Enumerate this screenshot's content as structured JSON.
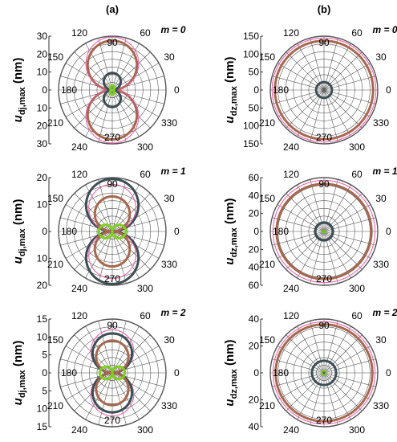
{
  "panel_labels": {
    "a": "(a)",
    "b": "(b)"
  },
  "colors": {
    "dark": "#3d4e54",
    "brown": "#a6684e",
    "green": "#7fcf1f",
    "pink": "#e85aa6",
    "red": "#d0202a",
    "cyan": "#27c6cf",
    "grid": "#555555"
  },
  "chart_data": [
    {
      "type": "polar",
      "id": "a0",
      "column": "a",
      "m_label": "m = 0",
      "ylabel_main": "u",
      "ylabel_sub": "dj,max",
      "ylabel_unit": " (nm)",
      "rmax": 30,
      "rticks": [
        "30",
        "20",
        "10",
        "0",
        "10",
        "20",
        "30"
      ],
      "angle_labels": [
        "90",
        "60",
        "30",
        "0",
        "330",
        "300",
        "270",
        "240",
        "210",
        "180",
        "150",
        "120"
      ],
      "curves": [
        {
          "color": "brown",
          "shape": "dipole",
          "amp": 27.5,
          "width": 3
        },
        {
          "color": "pink",
          "shape": "dipole",
          "amp": 29.5,
          "width": 1
        },
        {
          "color": "dark",
          "shape": "dipole",
          "amp": 9.5,
          "width": 3
        },
        {
          "color": "green",
          "shape": "dipole",
          "amp": 2.5,
          "width": 3
        }
      ]
    },
    {
      "type": "polar",
      "id": "b0",
      "column": "b",
      "m_label": "m = 0",
      "ylabel_main": "u",
      "ylabel_sub": "dz,max",
      "ylabel_unit": " (nm)",
      "rmax": 150,
      "rticks": [
        "150",
        "100",
        "50",
        "0",
        "50",
        "100",
        "150"
      ],
      "angle_labels": [
        "90",
        "60",
        "30",
        "0",
        "330",
        "300",
        "270",
        "240",
        "210",
        "180",
        "150",
        "120"
      ],
      "curves": [
        {
          "color": "pink",
          "shape": "circle",
          "amp": 145,
          "width": 1
        },
        {
          "color": "brown",
          "shape": "circle",
          "amp": 137,
          "width": 3
        },
        {
          "color": "dark",
          "shape": "circle",
          "amp": 22,
          "width": 3
        }
      ]
    },
    {
      "type": "polar",
      "id": "a1",
      "column": "a",
      "m_label": "m = 1",
      "ylabel_main": "u",
      "ylabel_sub": "dj,max",
      "ylabel_unit": " (nm)",
      "rmax": 20,
      "rticks": [
        "20",
        "10",
        "0",
        "10",
        "20"
      ],
      "angle_labels": [
        "90",
        "60",
        "30",
        "0",
        "330",
        "300",
        "270",
        "240",
        "210",
        "180",
        "150",
        "120"
      ],
      "curves": [
        {
          "color": "dark",
          "shape": "dipole",
          "amp": 19.5,
          "width": 3
        },
        {
          "color": "pink",
          "shape": "dipole",
          "amp": 17.5,
          "width": 1
        },
        {
          "color": "brown",
          "shape": "dipole",
          "amp": 13,
          "width": 3
        },
        {
          "color": "green",
          "shape": "dipoleX",
          "amp": 5,
          "width": 3
        }
      ]
    },
    {
      "type": "polar",
      "id": "b1",
      "column": "b",
      "m_label": "m = 1",
      "ylabel_main": "u",
      "ylabel_sub": "dz,max",
      "ylabel_unit": " (nm)",
      "rmax": 60,
      "rticks": [
        "60",
        "40",
        "20",
        "0",
        "20",
        "40",
        "60"
      ],
      "angle_labels": [
        "90",
        "60",
        "30",
        "0",
        "330",
        "300",
        "270",
        "240",
        "210",
        "180",
        "150",
        "120"
      ],
      "curves": [
        {
          "color": "pink",
          "shape": "circle",
          "amp": 57,
          "width": 1
        },
        {
          "color": "brown",
          "shape": "circle",
          "amp": 53,
          "width": 3
        },
        {
          "color": "dark",
          "shape": "circle",
          "amp": 10,
          "width": 3
        },
        {
          "color": "green",
          "shape": "circle",
          "amp": 1.5,
          "width": 2
        }
      ]
    },
    {
      "type": "polar",
      "id": "a2",
      "column": "a",
      "m_label": "m = 2",
      "ylabel_main": "u",
      "ylabel_sub": "dj,max",
      "ylabel_unit": " (nm)",
      "rmax": 15,
      "rticks": [
        "15",
        "10",
        "5",
        "0",
        "5",
        "10",
        "15"
      ],
      "angle_labels": [
        "90",
        "60",
        "30",
        "0",
        "330",
        "300",
        "270",
        "240",
        "210",
        "180",
        "150",
        "120"
      ],
      "curves": [
        {
          "color": "pink",
          "shape": "dipole",
          "amp": 12,
          "width": 1
        },
        {
          "color": "dark",
          "shape": "dipole",
          "amp": 11,
          "width": 3
        },
        {
          "color": "brown",
          "shape": "dipole",
          "amp": 9,
          "width": 3
        },
        {
          "color": "green",
          "shape": "dipoleX",
          "amp": 3.5,
          "width": 3
        }
      ]
    },
    {
      "type": "polar",
      "id": "b2",
      "column": "b",
      "m_label": "m = 2",
      "ylabel_main": "u",
      "ylabel_sub": "dz,max",
      "ylabel_unit": " (nm)",
      "rmax": 40,
      "rticks": [
        "40",
        "20",
        "0",
        "20",
        "40"
      ],
      "angle_labels": [
        "90",
        "60",
        "30",
        "0",
        "330",
        "300",
        "270",
        "240",
        "210",
        "180",
        "150",
        "120"
      ],
      "curves": [
        {
          "color": "pink",
          "shape": "circle",
          "amp": 38,
          "width": 1
        },
        {
          "color": "brown",
          "shape": "circle",
          "amp": 36,
          "width": 3
        },
        {
          "color": "dark",
          "shape": "circle",
          "amp": 9,
          "width": 3
        },
        {
          "color": "green",
          "shape": "circle",
          "amp": 1.5,
          "width": 2
        }
      ]
    }
  ]
}
